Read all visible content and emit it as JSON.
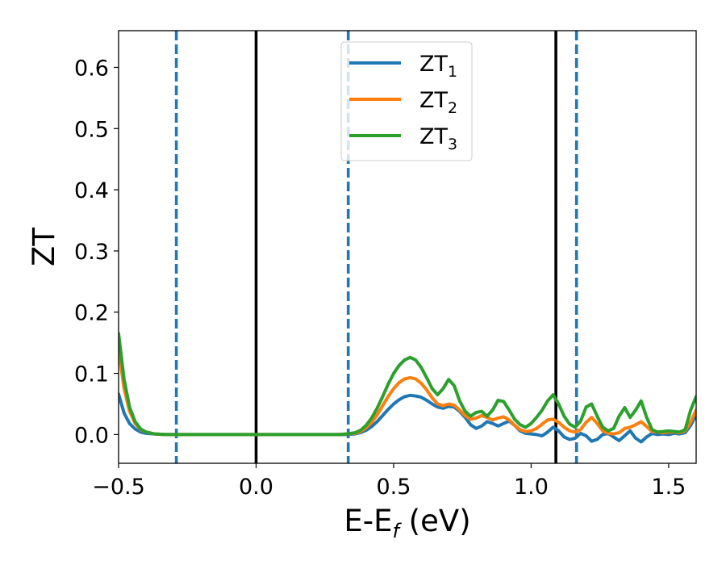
{
  "chart_data": {
    "type": "line",
    "title": "",
    "xlabel": {
      "base": "E-E",
      "sub": "f",
      "tail": " (eV)"
    },
    "ylabel": "ZT",
    "xlim": [
      -0.5,
      1.6
    ],
    "ylim": [
      -0.047,
      0.66
    ],
    "xticks": [
      {
        "value": -0.5,
        "label": "−0.5"
      },
      {
        "value": 0.0,
        "label": "0.0"
      },
      {
        "value": 0.5,
        "label": "0.5"
      },
      {
        "value": 1.0,
        "label": "1.0"
      },
      {
        "value": 1.5,
        "label": "1.5"
      }
    ],
    "yticks": [
      {
        "value": 0.0,
        "label": "0.0"
      },
      {
        "value": 0.1,
        "label": "0.1"
      },
      {
        "value": 0.2,
        "label": "0.2"
      },
      {
        "value": 0.3,
        "label": "0.3"
      },
      {
        "value": 0.4,
        "label": "0.4"
      },
      {
        "value": 0.5,
        "label": "0.5"
      },
      {
        "value": 0.6,
        "label": "0.6"
      }
    ],
    "grid": false,
    "legend": {
      "position": "upper-center"
    },
    "vlines": [
      {
        "x": -0.29,
        "style": "dashed",
        "color": "#1f77b4"
      },
      {
        "x": 0.0,
        "style": "solid",
        "color": "#000000"
      },
      {
        "x": 0.335,
        "style": "dashed",
        "color": "#1f77b4"
      },
      {
        "x": 1.09,
        "style": "solid",
        "color": "#000000"
      },
      {
        "x": 1.165,
        "style": "dashed",
        "color": "#1f77b4"
      }
    ],
    "series": [
      {
        "name": {
          "base": "ZT",
          "sub": "1"
        },
        "color": "#1f77b4",
        "points": [
          [
            -0.5,
            0.066
          ],
          [
            -0.48,
            0.035
          ],
          [
            -0.46,
            0.018
          ],
          [
            -0.44,
            0.009
          ],
          [
            -0.42,
            0.004
          ],
          [
            -0.4,
            0.002
          ],
          [
            -0.37,
            0.001
          ],
          [
            -0.33,
            0.0
          ],
          [
            0.0,
            0.0
          ],
          [
            0.3,
            0.0
          ],
          [
            0.33,
            0.0
          ],
          [
            0.36,
            0.001
          ],
          [
            0.38,
            0.003
          ],
          [
            0.4,
            0.007
          ],
          [
            0.42,
            0.013
          ],
          [
            0.44,
            0.021
          ],
          [
            0.46,
            0.031
          ],
          [
            0.48,
            0.041
          ],
          [
            0.5,
            0.05
          ],
          [
            0.52,
            0.057
          ],
          [
            0.54,
            0.062
          ],
          [
            0.56,
            0.064
          ],
          [
            0.58,
            0.063
          ],
          [
            0.6,
            0.061
          ],
          [
            0.62,
            0.056
          ],
          [
            0.64,
            0.05
          ],
          [
            0.66,
            0.045
          ],
          [
            0.68,
            0.043
          ],
          [
            0.7,
            0.046
          ],
          [
            0.72,
            0.045
          ],
          [
            0.74,
            0.038
          ],
          [
            0.76,
            0.028
          ],
          [
            0.78,
            0.016
          ],
          [
            0.8,
            0.01
          ],
          [
            0.82,
            0.014
          ],
          [
            0.84,
            0.021
          ],
          [
            0.86,
            0.018
          ],
          [
            0.88,
            0.014
          ],
          [
            0.9,
            0.018
          ],
          [
            0.92,
            0.022
          ],
          [
            0.94,
            0.015
          ],
          [
            0.96,
            0.006
          ],
          [
            0.98,
            0.002
          ],
          [
            1.0,
            0.001
          ],
          [
            1.02,
            0.0
          ],
          [
            1.04,
            -0.002
          ],
          [
            1.06,
            0.004
          ],
          [
            1.08,
            0.012
          ],
          [
            1.1,
            0.006
          ],
          [
            1.12,
            -0.004
          ],
          [
            1.14,
            -0.008
          ],
          [
            1.16,
            -0.006
          ],
          [
            1.18,
            0.002
          ],
          [
            1.2,
            -0.002
          ],
          [
            1.22,
            -0.011
          ],
          [
            1.24,
            -0.008
          ],
          [
            1.26,
            0.0
          ],
          [
            1.28,
            0.002
          ],
          [
            1.3,
            -0.004
          ],
          [
            1.32,
            -0.01
          ],
          [
            1.34,
            -0.002
          ],
          [
            1.36,
            0.006
          ],
          [
            1.38,
            -0.006
          ],
          [
            1.4,
            -0.012
          ],
          [
            1.42,
            -0.004
          ],
          [
            1.44,
            0.002
          ],
          [
            1.46,
            0.0
          ],
          [
            1.48,
            0.001
          ],
          [
            1.5,
            0.0
          ],
          [
            1.52,
            0.002
          ],
          [
            1.54,
            0.001
          ],
          [
            1.56,
            0.003
          ],
          [
            1.58,
            0.015
          ],
          [
            1.6,
            0.032
          ]
        ]
      },
      {
        "name": {
          "base": "ZT",
          "sub": "2"
        },
        "color": "#ff7f0e",
        "points": [
          [
            -0.5,
            0.14
          ],
          [
            -0.48,
            0.075
          ],
          [
            -0.46,
            0.038
          ],
          [
            -0.44,
            0.018
          ],
          [
            -0.42,
            0.008
          ],
          [
            -0.4,
            0.004
          ],
          [
            -0.37,
            0.001
          ],
          [
            -0.33,
            0.0
          ],
          [
            0.0,
            0.0
          ],
          [
            0.3,
            0.0
          ],
          [
            0.33,
            0.001
          ],
          [
            0.36,
            0.002
          ],
          [
            0.38,
            0.005
          ],
          [
            0.4,
            0.011
          ],
          [
            0.42,
            0.02
          ],
          [
            0.44,
            0.032
          ],
          [
            0.46,
            0.047
          ],
          [
            0.48,
            0.062
          ],
          [
            0.5,
            0.075
          ],
          [
            0.52,
            0.085
          ],
          [
            0.54,
            0.091
          ],
          [
            0.56,
            0.093
          ],
          [
            0.58,
            0.091
          ],
          [
            0.6,
            0.084
          ],
          [
            0.62,
            0.073
          ],
          [
            0.64,
            0.06
          ],
          [
            0.66,
            0.05
          ],
          [
            0.68,
            0.047
          ],
          [
            0.7,
            0.05
          ],
          [
            0.72,
            0.048
          ],
          [
            0.74,
            0.04
          ],
          [
            0.76,
            0.031
          ],
          [
            0.78,
            0.025
          ],
          [
            0.8,
            0.027
          ],
          [
            0.82,
            0.031
          ],
          [
            0.84,
            0.028
          ],
          [
            0.86,
            0.024
          ],
          [
            0.88,
            0.027
          ],
          [
            0.9,
            0.029
          ],
          [
            0.92,
            0.024
          ],
          [
            0.94,
            0.015
          ],
          [
            0.96,
            0.008
          ],
          [
            0.98,
            0.005
          ],
          [
            1.0,
            0.006
          ],
          [
            1.02,
            0.01
          ],
          [
            1.04,
            0.017
          ],
          [
            1.06,
            0.024
          ],
          [
            1.08,
            0.025
          ],
          [
            1.1,
            0.02
          ],
          [
            1.12,
            0.012
          ],
          [
            1.14,
            0.006
          ],
          [
            1.16,
            0.004
          ],
          [
            1.18,
            0.008
          ],
          [
            1.2,
            0.02
          ],
          [
            1.22,
            0.028
          ],
          [
            1.24,
            0.018
          ],
          [
            1.26,
            0.006
          ],
          [
            1.28,
            0.002
          ],
          [
            1.3,
            0.001
          ],
          [
            1.32,
            0.003
          ],
          [
            1.34,
            0.01
          ],
          [
            1.36,
            0.012
          ],
          [
            1.38,
            0.016
          ],
          [
            1.4,
            0.021
          ],
          [
            1.42,
            0.013
          ],
          [
            1.44,
            0.005
          ],
          [
            1.46,
            0.004
          ],
          [
            1.48,
            0.003
          ],
          [
            1.5,
            0.004
          ],
          [
            1.52,
            0.004
          ],
          [
            1.54,
            0.003
          ],
          [
            1.56,
            0.006
          ],
          [
            1.58,
            0.02
          ],
          [
            1.6,
            0.04
          ]
        ]
      },
      {
        "name": {
          "base": "ZT",
          "sub": "3"
        },
        "color": "#2ca02c",
        "points": [
          [
            -0.5,
            0.165
          ],
          [
            -0.48,
            0.09
          ],
          [
            -0.46,
            0.045
          ],
          [
            -0.44,
            0.021
          ],
          [
            -0.42,
            0.009
          ],
          [
            -0.4,
            0.004
          ],
          [
            -0.37,
            0.001
          ],
          [
            -0.33,
            0.0
          ],
          [
            0.0,
            0.0
          ],
          [
            0.3,
            0.0
          ],
          [
            0.33,
            0.001
          ],
          [
            0.36,
            0.003
          ],
          [
            0.38,
            0.007
          ],
          [
            0.4,
            0.015
          ],
          [
            0.42,
            0.027
          ],
          [
            0.44,
            0.043
          ],
          [
            0.46,
            0.062
          ],
          [
            0.48,
            0.082
          ],
          [
            0.5,
            0.1
          ],
          [
            0.52,
            0.113
          ],
          [
            0.54,
            0.122
          ],
          [
            0.56,
            0.126
          ],
          [
            0.58,
            0.122
          ],
          [
            0.6,
            0.11
          ],
          [
            0.62,
            0.093
          ],
          [
            0.64,
            0.075
          ],
          [
            0.66,
            0.065
          ],
          [
            0.68,
            0.075
          ],
          [
            0.7,
            0.09
          ],
          [
            0.72,
            0.08
          ],
          [
            0.74,
            0.055
          ],
          [
            0.76,
            0.038
          ],
          [
            0.78,
            0.03
          ],
          [
            0.8,
            0.036
          ],
          [
            0.82,
            0.038
          ],
          [
            0.84,
            0.03
          ],
          [
            0.86,
            0.04
          ],
          [
            0.88,
            0.056
          ],
          [
            0.9,
            0.054
          ],
          [
            0.92,
            0.04
          ],
          [
            0.94,
            0.025
          ],
          [
            0.96,
            0.016
          ],
          [
            0.98,
            0.012
          ],
          [
            1.0,
            0.018
          ],
          [
            1.02,
            0.028
          ],
          [
            1.04,
            0.04
          ],
          [
            1.06,
            0.055
          ],
          [
            1.08,
            0.065
          ],
          [
            1.1,
            0.05
          ],
          [
            1.12,
            0.03
          ],
          [
            1.14,
            0.017
          ],
          [
            1.16,
            0.012
          ],
          [
            1.18,
            0.022
          ],
          [
            1.2,
            0.045
          ],
          [
            1.22,
            0.05
          ],
          [
            1.24,
            0.03
          ],
          [
            1.26,
            0.012
          ],
          [
            1.28,
            0.006
          ],
          [
            1.3,
            0.01
          ],
          [
            1.32,
            0.03
          ],
          [
            1.34,
            0.044
          ],
          [
            1.36,
            0.028
          ],
          [
            1.38,
            0.04
          ],
          [
            1.4,
            0.055
          ],
          [
            1.42,
            0.028
          ],
          [
            1.44,
            0.008
          ],
          [
            1.46,
            0.004
          ],
          [
            1.48,
            0.005
          ],
          [
            1.5,
            0.006
          ],
          [
            1.52,
            0.005
          ],
          [
            1.54,
            0.004
          ],
          [
            1.56,
            0.008
          ],
          [
            1.58,
            0.04
          ],
          [
            1.6,
            0.062
          ]
        ]
      }
    ]
  }
}
